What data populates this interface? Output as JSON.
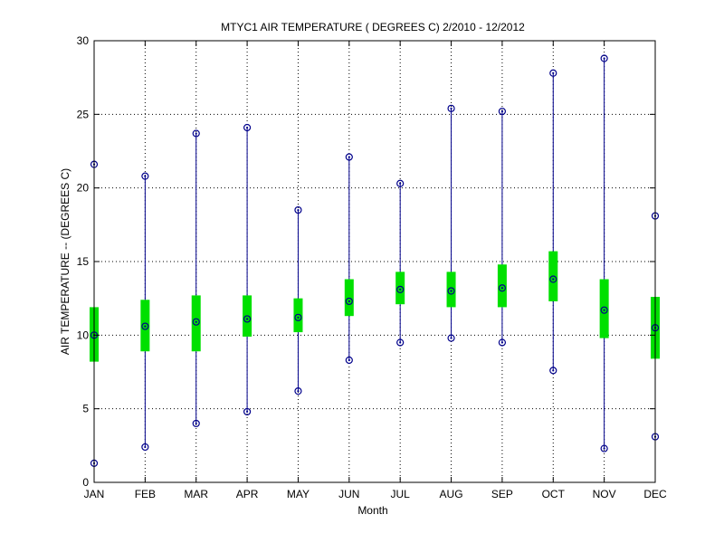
{
  "chart_data": {
    "type": "box",
    "title": "MTYC1  AIR TEMPERATURE ( DEGREES C) 2/2010 - 12/2012",
    "xlabel": "Month",
    "ylabel": "AIR TEMPERATURE -- (DEGREES C)",
    "ylim": [
      0,
      30
    ],
    "yticks": [
      0,
      5,
      10,
      15,
      20,
      25,
      30
    ],
    "grid": true,
    "categories": [
      "JAN",
      "FEB",
      "MAR",
      "APR",
      "MAY",
      "JUN",
      "JUL",
      "AUG",
      "SEP",
      "OCT",
      "NOV",
      "DEC"
    ],
    "min": [
      1.3,
      2.4,
      4.0,
      4.8,
      6.2,
      8.3,
      9.5,
      9.8,
      9.5,
      7.6,
      2.3,
      3.1
    ],
    "q1": [
      8.2,
      8.9,
      8.9,
      9.9,
      10.2,
      11.3,
      12.1,
      11.9,
      11.9,
      12.3,
      9.8,
      8.4
    ],
    "median": [
      10.0,
      10.6,
      10.9,
      11.1,
      11.2,
      12.3,
      13.1,
      13.0,
      13.2,
      13.8,
      11.7,
      10.5
    ],
    "q3": [
      11.9,
      12.4,
      12.7,
      12.7,
      12.5,
      13.8,
      14.3,
      14.3,
      14.8,
      15.7,
      13.8,
      12.6
    ],
    "max": [
      21.6,
      20.8,
      23.7,
      24.1,
      18.5,
      22.1,
      20.3,
      25.4,
      25.2,
      27.8,
      28.8,
      18.1
    ],
    "colors": {
      "box": "#00e000",
      "whisker": "#00008b",
      "marker": "#00008b",
      "axis": "#000000",
      "grid": "#000000"
    }
  }
}
